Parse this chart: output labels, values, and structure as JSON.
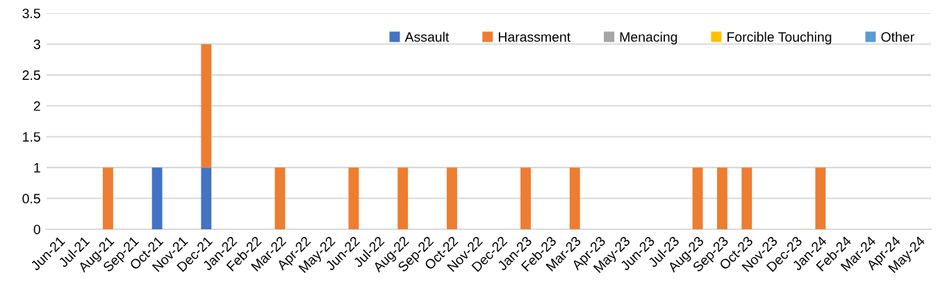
{
  "chart_data": {
    "type": "bar",
    "stacked": true,
    "categories": [
      "Jun-21",
      "Jul-21",
      "Aug-21",
      "Sep-21",
      "Oct-21",
      "Nov-21",
      "Dec-21",
      "Jan-22",
      "Feb-22",
      "Mar-22",
      "Apr-22",
      "May-22",
      "Jun-22",
      "Jul-22",
      "Aug-22",
      "Sep-22",
      "Oct-22",
      "Nov-22",
      "Dec-22",
      "Jan-23",
      "Feb-23",
      "Mar-23",
      "Apr-23",
      "May-23",
      "Jun-23",
      "Jul-23",
      "Aug-23",
      "Sep-23",
      "Oct-23",
      "Nov-23",
      "Dec-23",
      "Jan-24",
      "Feb-24",
      "Mar-24",
      "Apr-24",
      "May-24"
    ],
    "series": [
      {
        "name": "Assault",
        "color": "#4472c4",
        "values": [
          0,
          0,
          0,
          0,
          1,
          0,
          1,
          0,
          0,
          0,
          0,
          0,
          0,
          0,
          0,
          0,
          0,
          0,
          0,
          0,
          0,
          0,
          0,
          0,
          0,
          0,
          0,
          0,
          0,
          0,
          0,
          0,
          0,
          0,
          0,
          0
        ]
      },
      {
        "name": "Harassment",
        "color": "#ed7d31",
        "values": [
          0,
          0,
          1,
          0,
          0,
          0,
          2,
          0,
          0,
          1,
          0,
          0,
          1,
          0,
          1,
          0,
          1,
          0,
          0,
          1,
          0,
          1,
          0,
          0,
          0,
          0,
          1,
          1,
          1,
          0,
          0,
          1,
          0,
          0,
          0,
          0
        ]
      },
      {
        "name": "Menacing",
        "color": "#a5a5a5",
        "values": [
          0,
          0,
          0,
          0,
          0,
          0,
          0,
          0,
          0,
          0,
          0,
          0,
          0,
          0,
          0,
          0,
          0,
          0,
          0,
          0,
          0,
          0,
          0,
          0,
          0,
          0,
          0,
          0,
          0,
          0,
          0,
          0,
          0,
          0,
          0,
          0
        ]
      },
      {
        "name": "Forcible Touching",
        "color": "#ffc000",
        "values": [
          0,
          0,
          0,
          0,
          0,
          0,
          0,
          0,
          0,
          0,
          0,
          0,
          0,
          0,
          0,
          0,
          0,
          0,
          0,
          0,
          0,
          0,
          0,
          0,
          0,
          0,
          0,
          0,
          0,
          0,
          0,
          0,
          0,
          0,
          0,
          0
        ]
      },
      {
        "name": "Other",
        "color": "#5b9bd5",
        "values": [
          0,
          0,
          0,
          0,
          0,
          0,
          0,
          0,
          0,
          0,
          0,
          0,
          0,
          0,
          0,
          0,
          0,
          0,
          0,
          0,
          0,
          0,
          0,
          0,
          0,
          0,
          0,
          0,
          0,
          0,
          0,
          0,
          0,
          0,
          0,
          0
        ]
      }
    ],
    "ylim": [
      0,
      3.5
    ],
    "yticks": [
      0,
      0.5,
      1,
      1.5,
      2,
      2.5,
      3,
      3.5
    ],
    "grid": "y",
    "legend": "top right"
  }
}
